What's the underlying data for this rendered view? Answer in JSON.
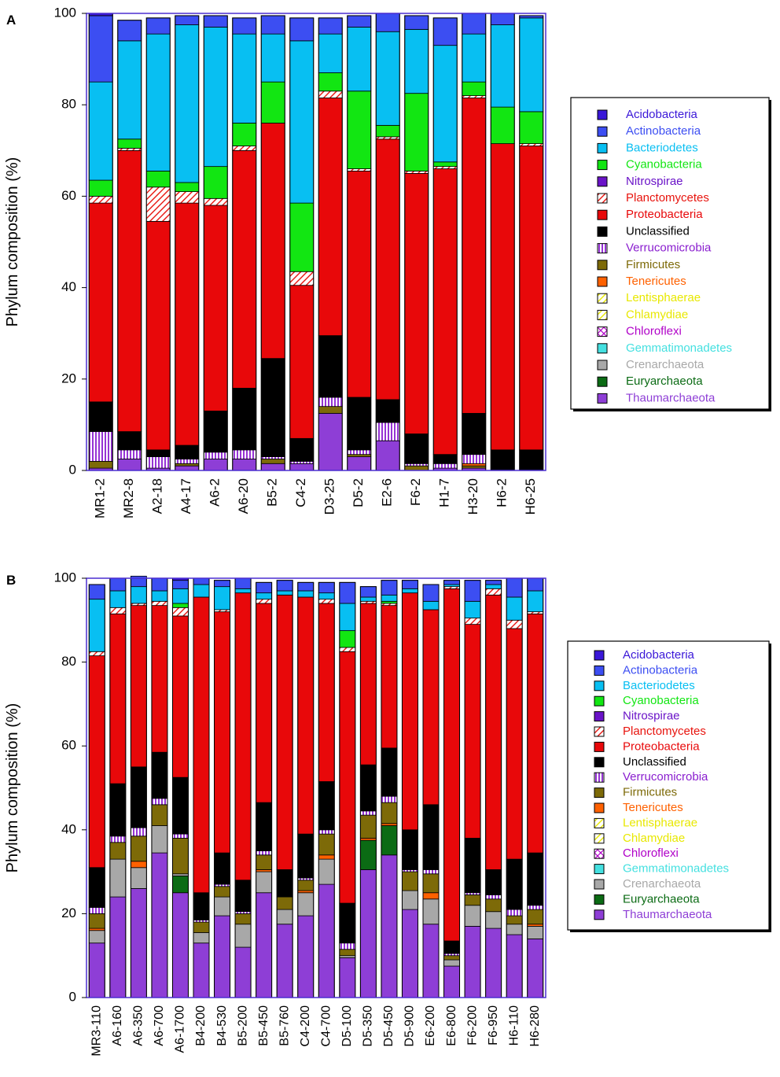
{
  "figure": {
    "panels": [
      "A",
      "B"
    ]
  },
  "legend_colors": {
    "Acidobacteria": "#3a17d8",
    "Actinobacteria": "#3c4ef2",
    "Bacteriodetes": "#08bff2",
    "Cyanobacteria": "#12e612",
    "Nitrospirae": "#6a13c8",
    "Planctomycetes": "#e8140e",
    "Proteobacteria": "#e8080a",
    "Unclassified": "#000000",
    "Verrucomicrobia": "#8a1ecf",
    "Firmicutes": "#7d6a08",
    "Tenericutes": "#ff6100",
    "Lentisphaerae": "#e8e800",
    "Chlamydiae": "#e8e800",
    "Chloroflexi": "#b000c8",
    "Gemmatimonadetes": "#44e0e0",
    "Crenarchaeota": "#a8a8a8",
    "Euryarchaeota": "#0b6b14",
    "Thaumarchaeota": "#8e3ed6"
  },
  "legend_patterns": {
    "Planctomycetes": "diag",
    "Verrucomicrobia": "vert",
    "Lentisphaerae": "diag",
    "Chlamydiae": "diag",
    "Chloroflexi": "cross"
  },
  "chart_data": [
    {
      "panel": "A",
      "type": "bar",
      "stacked": true,
      "ylabel": "Phylum composition (%)",
      "xlabel": "",
      "ylim": [
        0,
        100
      ],
      "yticks": [
        0,
        20,
        40,
        60,
        80,
        100
      ],
      "legend_position": "right",
      "categories": [
        "MR1-2",
        "MR2-8",
        "A2-18",
        "A4-17",
        "A6-2",
        "A6-20",
        "B5-2",
        "C4-2",
        "D3-25",
        "D5-2",
        "E2-6",
        "F6-2",
        "H1-7",
        "H3-20",
        "H6-2",
        "H6-25"
      ],
      "legend": [
        "Acidobacteria",
        "Actinobacteria",
        "Bacteriodetes",
        "Cyanobacteria",
        "Nitrospirae",
        "Planctomycetes",
        "Proteobacteria",
        "Unclassified",
        "Verrucomicrobia",
        "Firmicutes",
        "Tenericutes",
        "Lentisphaerae",
        "Chlamydiae",
        "Chloroflexi",
        "Gemmatimonadetes",
        "Crenarchaeota",
        "Euryarchaeota",
        "Thaumarchaeota"
      ],
      "series": [
        {
          "name": "Thaumarchaeota",
          "values": [
            0.5,
            2.5,
            0.5,
            1,
            2.5,
            2.5,
            1.5,
            1.5,
            12.5,
            3,
            6.5,
            0,
            0.5,
            0.5,
            0,
            0
          ]
        },
        {
          "name": "Euryarchaeota",
          "values": [
            0,
            0,
            0,
            0,
            0,
            0,
            0,
            0,
            0,
            0,
            0,
            0,
            0,
            0,
            0,
            0
          ]
        },
        {
          "name": "Crenarchaeota",
          "values": [
            0,
            0,
            0,
            0,
            0,
            0,
            0,
            0,
            0,
            0,
            0,
            0,
            0,
            0,
            0,
            0
          ]
        },
        {
          "name": "Firmicutes",
          "values": [
            1.5,
            0,
            0,
            0.5,
            0,
            0,
            1,
            0,
            1.5,
            0.5,
            0,
            1,
            0,
            0.5,
            0,
            0
          ]
        },
        {
          "name": "Tenericutes",
          "values": [
            0,
            0,
            0,
            0,
            0,
            0,
            0,
            0,
            0,
            0,
            0,
            0,
            0,
            0.5,
            0,
            0
          ]
        },
        {
          "name": "Verrucomicrobia",
          "values": [
            6.5,
            2,
            2.5,
            1,
            1.5,
            2,
            0.5,
            0.5,
            2,
            1,
            4,
            0.5,
            1,
            2,
            0,
            0
          ]
        },
        {
          "name": "Unclassified",
          "values": [
            6.5,
            4,
            1.5,
            3,
            9,
            13.5,
            21.5,
            5,
            13.5,
            11.5,
            5,
            6.5,
            2,
            9,
            4.5,
            4.5
          ]
        },
        {
          "name": "Proteobacteria",
          "values": [
            43.5,
            61.5,
            50,
            53,
            45,
            52,
            51.5,
            33.5,
            52,
            49.5,
            57,
            57,
            62.5,
            69,
            67,
            66.5
          ]
        },
        {
          "name": "Planctomycetes",
          "values": [
            1.5,
            0.5,
            7.5,
            2.5,
            1.5,
            1,
            0,
            3,
            1.5,
            0.5,
            0.5,
            0.5,
            0.5,
            0.5,
            0,
            0.5
          ]
        },
        {
          "name": "Cyanobacteria",
          "values": [
            3.5,
            2,
            3.5,
            2,
            7,
            5,
            9,
            15,
            4,
            17,
            2.5,
            17,
            1,
            3,
            8,
            7
          ]
        },
        {
          "name": "Bacteriodetes",
          "values": [
            21.5,
            21.5,
            30,
            34.5,
            30.5,
            19.5,
            10.5,
            35.5,
            8.5,
            14,
            20.5,
            14,
            25.5,
            10.5,
            18,
            20.5
          ]
        },
        {
          "name": "Actinobacteria",
          "values": [
            14.5,
            4.5,
            3.5,
            2,
            2.5,
            3.5,
            4,
            5,
            3.5,
            2.5,
            4,
            3,
            6,
            4.5,
            2.5,
            0.5
          ]
        },
        {
          "name": "Acidobacteria",
          "values": [
            0.5,
            0,
            0,
            0,
            0,
            0,
            0,
            0,
            0,
            0,
            0,
            0,
            0,
            0,
            0,
            0
          ]
        }
      ]
    },
    {
      "panel": "B",
      "type": "bar",
      "stacked": true,
      "ylabel": "Phylum composition (%)",
      "xlabel": "",
      "ylim": [
        0,
        100
      ],
      "yticks": [
        0,
        20,
        40,
        60,
        80,
        100
      ],
      "legend_position": "right",
      "categories": [
        "MR3-110",
        "A6-160",
        "A6-350",
        "A6-700",
        "A6-1700",
        "B4-200",
        "B4-530",
        "B5-200",
        "B5-450",
        "B5-760",
        "C4-200",
        "C4-700",
        "D5-100",
        "D5-350",
        "D5-450",
        "D5-900",
        "E6-200",
        "E6-800",
        "F6-200",
        "F6-950",
        "H6-110",
        "H6-280"
      ],
      "legend": [
        "Acidobacteria",
        "Actinobacteria",
        "Bacteriodetes",
        "Cyanobacteria",
        "Nitrospirae",
        "Planctomycetes",
        "Proteobacteria",
        "Unclassified",
        "Verrucomicrobia",
        "Firmicutes",
        "Tenericutes",
        "Lentisphaerae",
        "Chlamydiae",
        "Chloroflexi",
        "Gemmatimonadetes",
        "Crenarchaeota",
        "Euryarchaeota",
        "Thaumarchaeota"
      ],
      "series": [
        {
          "name": "Thaumarchaeota",
          "values": [
            13,
            24,
            26,
            34.5,
            25,
            13,
            19.5,
            12,
            25,
            17.5,
            19.5,
            27,
            9.5,
            30.5,
            34,
            21,
            17.5,
            7.5,
            17,
            16.5,
            15,
            14
          ]
        },
        {
          "name": "Euryarchaeota",
          "values": [
            0,
            0,
            0,
            0,
            4,
            0,
            0,
            0,
            0,
            0,
            0,
            0,
            0,
            7,
            7,
            0,
            0,
            0,
            0,
            0,
            0,
            0
          ]
        },
        {
          "name": "Crenarchaeota",
          "values": [
            3,
            9,
            5,
            6.5,
            0.5,
            2.5,
            4.5,
            5.5,
            5,
            3.5,
            5.5,
            6,
            0.5,
            0,
            0,
            4.5,
            6,
            1.5,
            5,
            4,
            2.5,
            3
          ]
        },
        {
          "name": "Tenericutes",
          "values": [
            0.5,
            0,
            1.5,
            0,
            0,
            0,
            0,
            0,
            0.5,
            0,
            0.5,
            1,
            0,
            0.5,
            0.5,
            0,
            1.5,
            0,
            0,
            0,
            0,
            0.5
          ]
        },
        {
          "name": "Firmicutes",
          "values": [
            3.5,
            4,
            6,
            5,
            8.5,
            2.5,
            2.5,
            2.5,
            3.5,
            3,
            2.5,
            5,
            1.5,
            5.5,
            5,
            4.5,
            4.5,
            1,
            2.5,
            3,
            2,
            3.5
          ]
        },
        {
          "name": "Verrucomicrobia",
          "values": [
            1.5,
            1.5,
            2,
            1.5,
            1,
            0.5,
            0.5,
            0.5,
            1,
            0,
            0.5,
            1,
            1.5,
            1,
            1.5,
            0.5,
            1,
            0.5,
            0.5,
            1,
            1.5,
            1
          ]
        },
        {
          "name": "Unclassified",
          "values": [
            9.5,
            12.5,
            14.5,
            11,
            13.5,
            6.5,
            7.5,
            7.5,
            11.5,
            6.5,
            10.5,
            11.5,
            9.5,
            11,
            11.5,
            9.5,
            15.5,
            3,
            13,
            6,
            12,
            12.5
          ]
        },
        {
          "name": "Proteobacteria",
          "values": [
            50.5,
            40.5,
            38.5,
            35,
            38.5,
            70.5,
            57.5,
            68.5,
            47.5,
            65.5,
            56.5,
            42.5,
            60,
            38.5,
            34,
            56.5,
            46.5,
            84,
            51,
            65.5,
            55,
            57
          ]
        },
        {
          "name": "Planctomycetes",
          "values": [
            1,
            1.5,
            0.5,
            1,
            2,
            0,
            0.5,
            0,
            1,
            0,
            0,
            1,
            1,
            0.5,
            0.5,
            0,
            0,
            0.5,
            1.5,
            1.5,
            2,
            0.5
          ]
        },
        {
          "name": "Cyanobacteria",
          "values": [
            0,
            0,
            0,
            0,
            1,
            0,
            0,
            0,
            0,
            0,
            0,
            0,
            4,
            0,
            0.5,
            0,
            0,
            0,
            0,
            0,
            0,
            0
          ]
        },
        {
          "name": "Bacteriodetes",
          "values": [
            12.5,
            4,
            4,
            2.5,
            3.5,
            3,
            5.5,
            1,
            1.5,
            1,
            1.5,
            1.5,
            6.5,
            1,
            1.5,
            1,
            2,
            0.5,
            4,
            1,
            5.5,
            5
          ]
        },
        {
          "name": "Actinobacteria",
          "values": [
            3.5,
            3,
            2.5,
            3,
            2,
            1.5,
            1.5,
            2.5,
            2.5,
            2.5,
            2,
            2.5,
            5,
            2.5,
            3.5,
            2,
            4,
            1,
            5,
            1,
            4.5,
            3
          ]
        },
        {
          "name": "Acidobacteria",
          "values": [
            0,
            0,
            0,
            0,
            0.5,
            0,
            0,
            0,
            0,
            0,
            0,
            0,
            0,
            0,
            0,
            0,
            0,
            0,
            0,
            0,
            0,
            0
          ]
        }
      ]
    }
  ]
}
